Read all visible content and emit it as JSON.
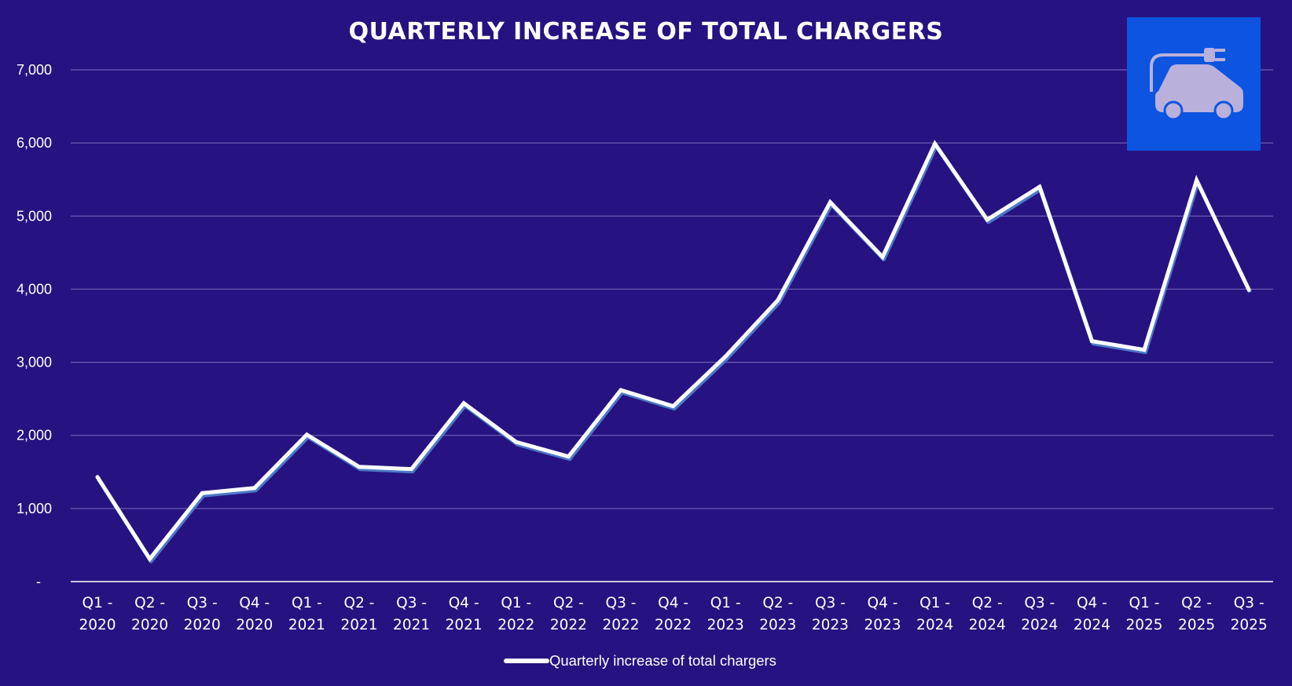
{
  "colors": {
    "background": "#271281",
    "line": "#ffffff",
    "line_shadow": "#4b78c8",
    "gridline": "#7a6ec0",
    "icon_panel": "#0d54e0",
    "icon_glyph": "#b9b0dc"
  },
  "icon": "electric-car-charging-icon",
  "chart_data": {
    "type": "line",
    "title": "QUARTERLY INCREASE OF TOTAL CHARGERS",
    "xlabel": "",
    "ylabel": "",
    "ylim": [
      0,
      7000
    ],
    "yticks": [
      {
        "value": 0,
        "label": "-"
      },
      {
        "value": 1000,
        "label": "1,000"
      },
      {
        "value": 2000,
        "label": "2,000"
      },
      {
        "value": 3000,
        "label": "3,000"
      },
      {
        "value": 4000,
        "label": "4,000"
      },
      {
        "value": 5000,
        "label": "5,000"
      },
      {
        "value": 6000,
        "label": "6,000"
      },
      {
        "value": 7000,
        "label": "7,000"
      }
    ],
    "grid": true,
    "legend_position": "bottom",
    "categories": [
      {
        "line1": "Q1 -",
        "line2": "2020"
      },
      {
        "line1": "Q2 -",
        "line2": "2020"
      },
      {
        "line1": "Q3 -",
        "line2": "2020"
      },
      {
        "line1": "Q4 -",
        "line2": "2020"
      },
      {
        "line1": "Q1 -",
        "line2": "2021"
      },
      {
        "line1": "Q2 -",
        "line2": "2021"
      },
      {
        "line1": "Q3 -",
        "line2": "2021"
      },
      {
        "line1": "Q4 -",
        "line2": "2021"
      },
      {
        "line1": "Q1 -",
        "line2": "2022"
      },
      {
        "line1": "Q2 -",
        "line2": "2022"
      },
      {
        "line1": "Q3 -",
        "line2": "2022"
      },
      {
        "line1": "Q4 -",
        "line2": "2022"
      },
      {
        "line1": "Q1 -",
        "line2": "2023"
      },
      {
        "line1": "Q2 -",
        "line2": "2023"
      },
      {
        "line1": "Q3 -",
        "line2": "2023"
      },
      {
        "line1": "Q4 -",
        "line2": "2023"
      },
      {
        "line1": "Q1 -",
        "line2": "2024"
      },
      {
        "line1": "Q2 -",
        "line2": "2024"
      },
      {
        "line1": "Q3 -",
        "line2": "2024"
      },
      {
        "line1": "Q4 -",
        "line2": "2024"
      },
      {
        "line1": "Q1 -",
        "line2": "2025"
      },
      {
        "line1": "Q2 -",
        "line2": "2025"
      },
      {
        "line1": "Q3 -",
        "line2": "2025"
      }
    ],
    "series": [
      {
        "name": "Quarterly increase of total chargers",
        "values": [
          1430,
          310,
          1210,
          1280,
          2010,
          1570,
          1540,
          2440,
          1910,
          1710,
          2620,
          2400,
          3080,
          3850,
          5190,
          4440,
          5990,
          4950,
          5400,
          3290,
          3170,
          5490,
          3990
        ]
      }
    ]
  }
}
